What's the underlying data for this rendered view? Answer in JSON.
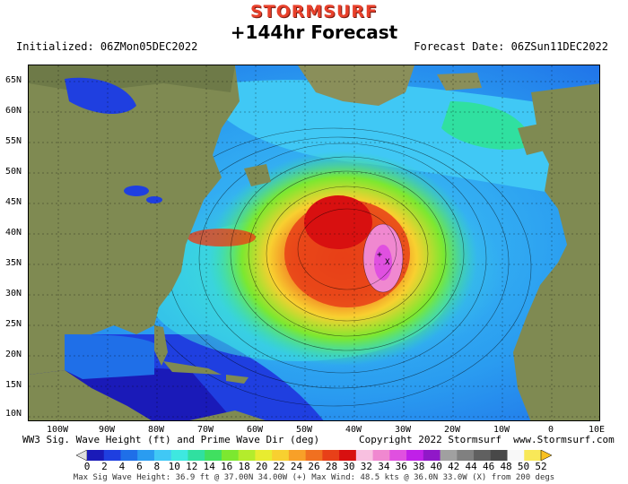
{
  "header": {
    "brand": "STORMSURF",
    "title": "+144hr Forecast",
    "initialized": "Initialized: 06ZMon05DEC2022",
    "forecast_date": "Forecast Date: 06ZSun11DEC2022"
  },
  "axes": {
    "lat_labels": [
      "65N",
      "60N",
      "55N",
      "50N",
      "45N",
      "40N",
      "35N",
      "30N",
      "25N",
      "20N",
      "15N",
      "10N"
    ],
    "lon_labels": [
      "100W",
      "90W",
      "80W",
      "70W",
      "60W",
      "50W",
      "40W",
      "30W",
      "20W",
      "10W",
      "0",
      "10E"
    ]
  },
  "caption": {
    "left": "WW3 Sig. Wave Height (ft) and Prime Wave Dir (deg)",
    "right": "Copyright 2022 Stormsurf  www.Stormsurf.com"
  },
  "colorbar": {
    "labels": [
      "0",
      "2",
      "4",
      "6",
      "8",
      "10",
      "12",
      "14",
      "16",
      "18",
      "20",
      "22",
      "24",
      "26",
      "28",
      "30",
      "32",
      "34",
      "36",
      "38",
      "40",
      "42",
      "44",
      "46",
      "48",
      "50",
      "52"
    ],
    "colors": [
      "#1a1ab8",
      "#1f3fe0",
      "#1f6fe8",
      "#2a9cf0",
      "#40c8f5",
      "#3ee8e0",
      "#30e0a0",
      "#40e060",
      "#7ce830",
      "#b4ec2c",
      "#e8ec30",
      "#f8d030",
      "#f8a028",
      "#f07020",
      "#e84018",
      "#d81010",
      "#f8c0e0",
      "#f088d0",
      "#e050e0",
      "#c020e8",
      "#9018c8",
      "#a0a0a0",
      "#808080",
      "#606060",
      "#484848",
      "#f8f8f8",
      "#f8e858"
    ]
  },
  "stats": "Max Sig Wave Height: 36.9 ft @ 37.00N 34.00W (+)   Max Wind: 48.5 kts @ 36.0N 33.0W (X) from 200 degs"
}
